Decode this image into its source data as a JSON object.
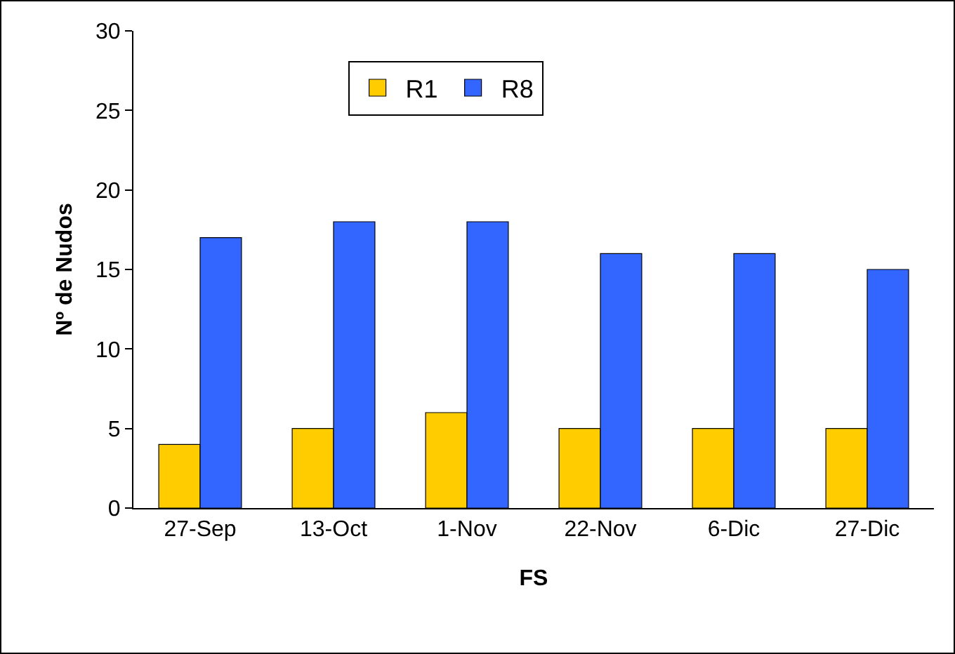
{
  "chart_data": {
    "type": "bar",
    "xlabel": "FS",
    "ylabel": "Nº de Nudos",
    "categories": [
      "27-Sep",
      "13-Oct",
      "1-Nov",
      "22-Nov",
      "6-Dic",
      "27-Dic"
    ],
    "series": [
      {
        "name": "R1",
        "color": "#ffcc00",
        "values": [
          4,
          5,
          6,
          5,
          5,
          5
        ]
      },
      {
        "name": "R8",
        "color": "#3366ff",
        "values": [
          17,
          18,
          18,
          16,
          16,
          15
        ]
      }
    ],
    "ylim": [
      0,
      30
    ],
    "yticks": [
      0,
      5,
      10,
      15,
      20,
      25,
      30
    ],
    "grid": false,
    "legend": "top"
  }
}
